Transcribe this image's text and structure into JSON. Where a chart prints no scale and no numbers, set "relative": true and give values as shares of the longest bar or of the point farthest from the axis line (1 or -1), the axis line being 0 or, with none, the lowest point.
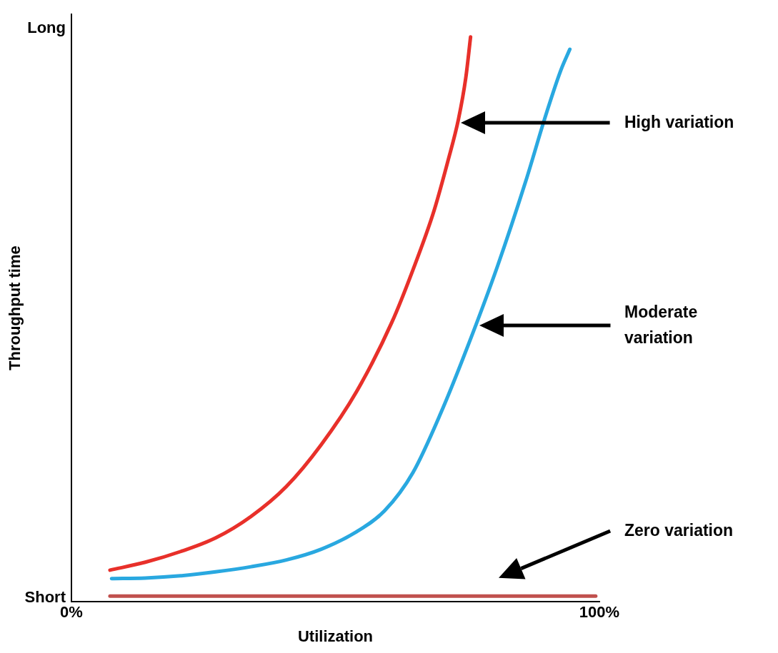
{
  "chart_data": {
    "type": "line",
    "xlabel": "Utilization",
    "ylabel": "Throughput time",
    "relative": true,
    "xlim": [
      0,
      100
    ],
    "xticks": [
      {
        "value": 0,
        "label": "0%"
      },
      {
        "value": 100,
        "label": "100%"
      }
    ],
    "grid": false,
    "legend": false,
    "marker": "none",
    "line_style": "solid",
    "series": [
      {
        "name": "High variation",
        "color": "#e8302a",
        "x": [
          7.3,
          14,
          20.7,
          27.3,
          34,
          40.7,
          47.3,
          54,
          60.7,
          64.7,
          68.7,
          71.3,
          73.3,
          74.7,
          75.6
        ],
        "values": [
          0.056,
          0.07,
          0.089,
          0.113,
          0.151,
          0.204,
          0.278,
          0.372,
          0.495,
          0.588,
          0.693,
          0.78,
          0.854,
          0.928,
          1
        ]
      },
      {
        "name": "Moderate variation",
        "color": "#29a8e0",
        "x": [
          7.6,
          14,
          20.7,
          27.3,
          34,
          40.7,
          47.3,
          54,
          59.3,
          64.7,
          70,
          75.3,
          80.7,
          86,
          90,
          92.7,
          94.4
        ],
        "values": [
          0.041,
          0.042,
          0.046,
          0.053,
          0.062,
          0.074,
          0.093,
          0.124,
          0.161,
          0.229,
          0.335,
          0.458,
          0.594,
          0.743,
          0.866,
          0.941,
          0.978
        ]
      },
      {
        "name": "Zero variation",
        "color": "#c0504d",
        "x": [
          7.3,
          99.3
        ],
        "values": [
          0.01,
          0.01
        ]
      }
    ],
    "annotations": [
      "Long",
      "Short"
    ]
  }
}
